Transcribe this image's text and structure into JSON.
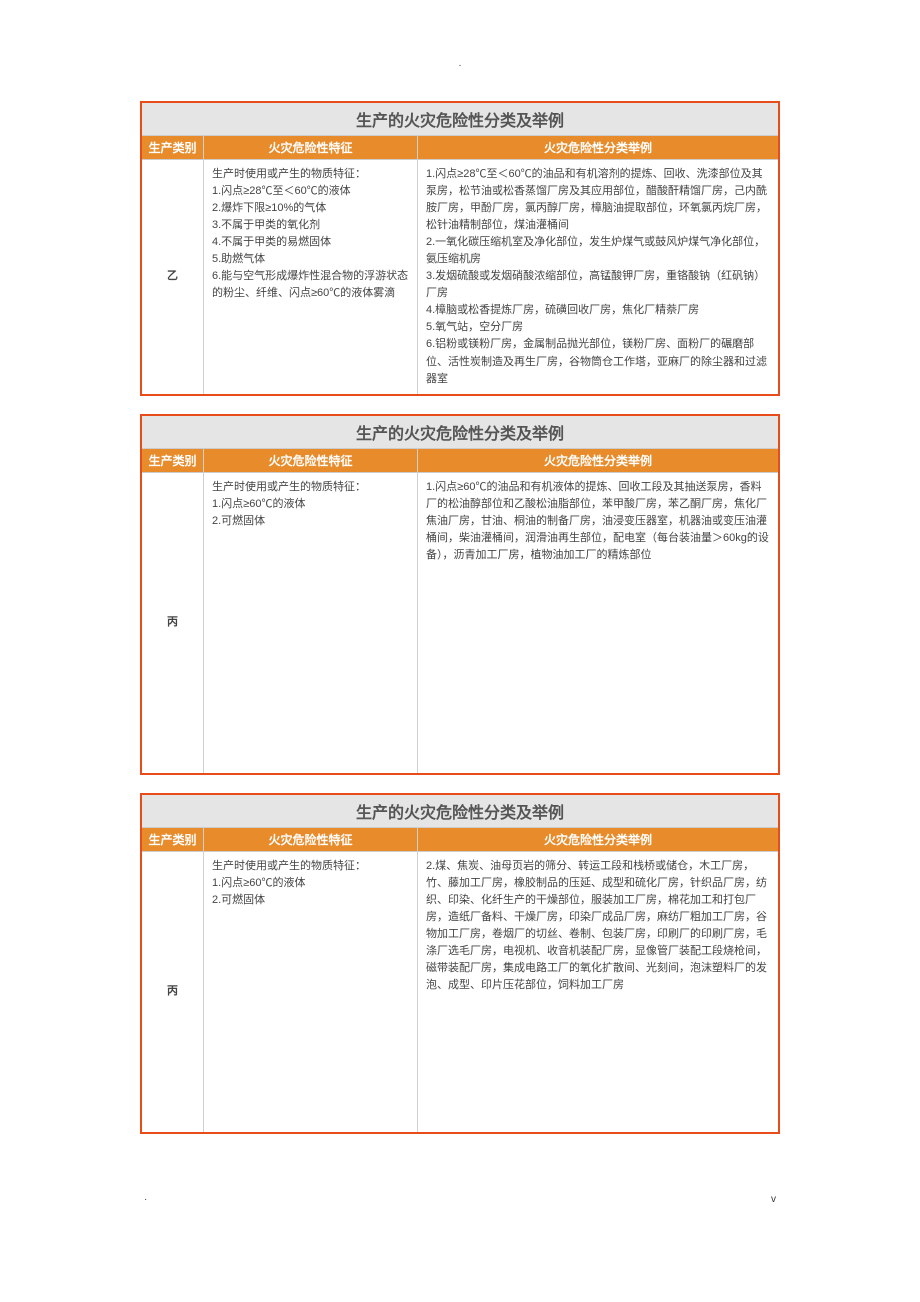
{
  "page": {
    "top_mark": "·",
    "footer_left": "·",
    "footer_right": "v"
  },
  "tables": [
    {
      "title": "生产的火灾危险性分类及举例",
      "headers": {
        "c1": "生产类别",
        "c2": "火灾危险性特征",
        "c3": "火灾危险性分类举例"
      },
      "row": {
        "category": "乙",
        "features": "生产时使用或产生的物质特征：\n1.闪点≥28℃至＜60℃的液体\n2.爆炸下限≥10%的气体\n3.不属于甲类的氧化剂\n4.不属于甲类的易燃固体\n5.助燃气体\n6.能与空气形成爆炸性混合物的浮游状态的粉尘、纤维、闪点≥60℃的液体雾滴",
        "examples": "1.闪点≥28℃至＜60℃的油品和有机溶剂的提炼、回收、洗漆部位及其泵房，松节油或松香蒸馏厂房及其应用部位，醋酸酐精馏厂房，己内酰胺厂房，甲酚厂房，氯丙醇厂房，樟脑油提取部位，环氧氯丙烷厂房，松针油精制部位，煤油灌桶间\n2.一氧化碳压缩机室及净化部位，发生炉煤气或鼓风炉煤气净化部位，氨压缩机房\n3.发烟硫酸或发烟硝酸浓缩部位，高锰酸钾厂房，重铬酸钠（红矾钠）厂房\n4.樟脑或松香提炼厂房，硫磺回收厂房，焦化厂精萘厂房\n5.氧气站，空分厂房\n6.铝粉或镁粉厂房，金属制品抛光部位，镁粉厂房、面粉厂的碾磨部位、活性炭制造及再生厂房，谷物筒仓工作塔，亚麻厂的除尘器和过滤器室"
      }
    },
    {
      "title": "生产的火灾危险性分类及举例",
      "headers": {
        "c1": "生产类别",
        "c2": "火灾危险性特征",
        "c3": "火灾危险性分类举例"
      },
      "row": {
        "category": "丙",
        "features": "生产时使用或产生的物质特征：\n1.闪点≥60℃的液体\n2.可燃固体",
        "examples": "1.闪点≥60℃的油品和有机液体的提炼、回收工段及其抽送泵房，香料厂的松油醇部位和乙酸松油脂部位，苯甲酸厂房，苯乙酮厂房，焦化厂焦油厂房，甘油、桐油的制备厂房，油浸变压器室，机器油或变压油灌桶间，柴油灌桶间，润滑油再生部位，配电室（每台装油量＞60kg的设备），沥青加工厂房，植物油加工厂的精炼部位"
      },
      "extraClass": "tall-2"
    },
    {
      "title": "生产的火灾危险性分类及举例",
      "headers": {
        "c1": "生产类别",
        "c2": "火灾危险性特征",
        "c3": "火灾危险性分类举例"
      },
      "row": {
        "category": "丙",
        "features": "生产时使用或产生的物质特征：\n1.闪点≥60℃的液体\n2.可燃固体",
        "examples": "2.煤、焦炭、油母页岩的筛分、转运工段和栈桥或储仓，木工厂房，竹、藤加工厂房，橡胶制品的压延、成型和硫化厂房，针织品厂房，纺织、印染、化纤生产的干燥部位，服装加工厂房，棉花加工和打包厂房，造纸厂备料、干燥厂房，印染厂成品厂房，麻纺厂粗加工厂房，谷物加工厂房，卷烟厂的切丝、卷制、包装厂房，印刷厂的印刷厂房，毛涤厂选毛厂房，电视机、收音机装配厂房，显像管厂装配工段烧枪间，磁带装配厂房，集成电路工厂的氧化扩散间、光刻间，泡沫塑料厂的发泡、成型、印片压花部位，饲料加工厂房"
      },
      "extraClass": "tall-3"
    }
  ],
  "colors": {
    "border": "#e84c1a",
    "header_bg": "#e88b2a",
    "title_bg": "#e5e5e5"
  }
}
